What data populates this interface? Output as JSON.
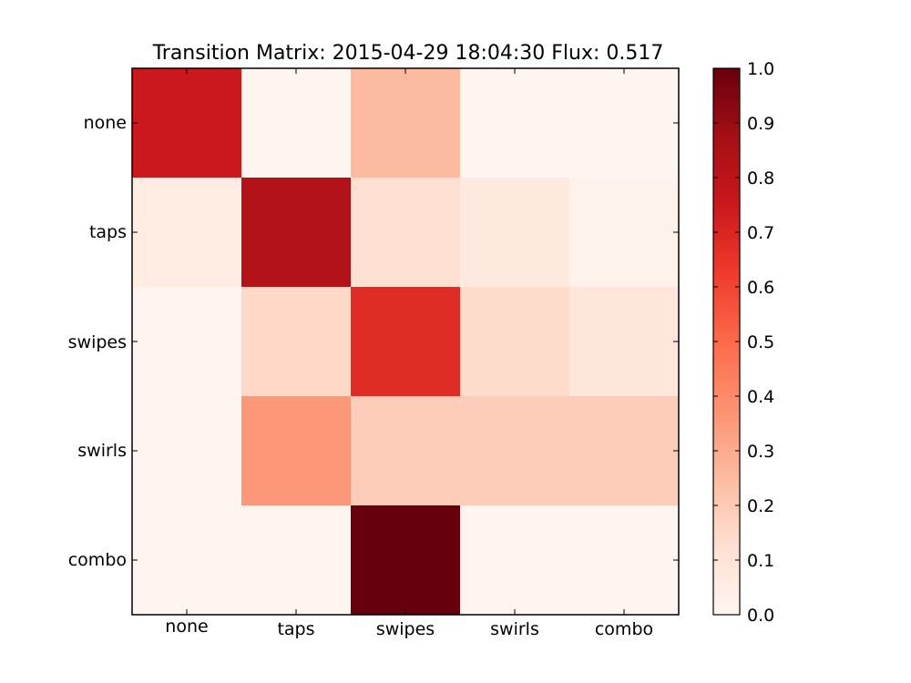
{
  "chart_data": {
    "type": "heatmap",
    "title": "Transition Matrix: 2015-04-29 18:04:30 Flux: 0.517",
    "xlabel": "",
    "ylabel": "",
    "x_categories": [
      "none",
      "taps",
      "swipes",
      "swirls",
      "combo"
    ],
    "y_categories": [
      "none",
      "taps",
      "swipes",
      "swirls",
      "combo"
    ],
    "values": [
      [
        0.75,
        0.0,
        0.25,
        0.0,
        0.0
      ],
      [
        0.05,
        0.83,
        0.12,
        0.07,
        0.02
      ],
      [
        0.0,
        0.15,
        0.68,
        0.14,
        0.09
      ],
      [
        0.0,
        0.36,
        0.19,
        0.19,
        0.19
      ],
      [
        0.0,
        0.0,
        1.0,
        0.0,
        0.0
      ]
    ],
    "colorbar": {
      "min": 0.0,
      "max": 1.0,
      "ticks": [
        "0.0",
        "0.1",
        "0.2",
        "0.3",
        "0.4",
        "0.5",
        "0.6",
        "0.7",
        "0.8",
        "0.9",
        "1.0"
      ],
      "colormap": "Reds"
    },
    "grid": false
  }
}
